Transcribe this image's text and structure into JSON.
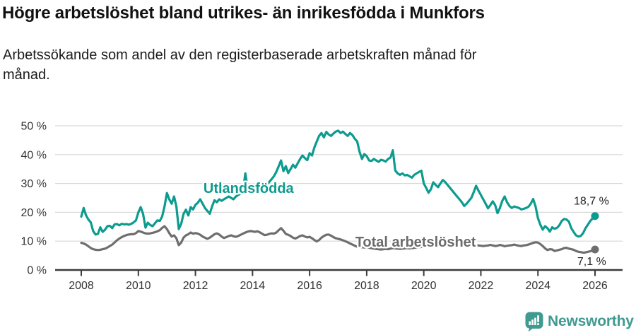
{
  "header": {
    "title": "Högre arbetslöshet bland utrikes- än inrikesfödda i Munkfors",
    "subtitle": "Arbetssökande som andel av den registerbaserade arbetskraften månad för månad."
  },
  "chart_data": {
    "type": "line",
    "x_unit": "year (monthly resolution)",
    "y_unit": "%",
    "x_start": 2008.0,
    "x_end": 2026.0,
    "x_step": 0.0833,
    "xlim": [
      2007.08,
      2026.96
    ],
    "ylim": [
      0,
      50
    ],
    "grid": "horizontal",
    "y_ticks": [
      {
        "value": 0,
        "label": "0 %"
      },
      {
        "value": 10,
        "label": "10 %"
      },
      {
        "value": 20,
        "label": "20 %"
      },
      {
        "value": 30,
        "label": "30 %"
      },
      {
        "value": 40,
        "label": "40 %"
      },
      {
        "value": 50,
        "label": "50 %"
      }
    ],
    "x_ticks": [
      {
        "value": 2008,
        "label": "2008"
      },
      {
        "value": 2010,
        "label": "2010"
      },
      {
        "value": 2012,
        "label": "2012"
      },
      {
        "value": 2014,
        "label": "2014"
      },
      {
        "value": 2016,
        "label": "2016"
      },
      {
        "value": 2018,
        "label": "2018"
      },
      {
        "value": 2020,
        "label": "2020"
      },
      {
        "value": 2022,
        "label": "2022"
      },
      {
        "value": 2024,
        "label": "2024"
      },
      {
        "value": 2026,
        "label": "2026"
      }
    ],
    "series": [
      {
        "name": "Total arbetslöshet",
        "color": "#6e6e6e",
        "end_value": 7.1,
        "values": [
          9.4,
          9.2,
          8.8,
          8.2,
          7.6,
          7.2,
          7.0,
          6.9,
          7.0,
          7.2,
          7.4,
          7.8,
          8.3,
          8.8,
          9.5,
          10.3,
          10.9,
          11.4,
          11.8,
          12.1,
          12.3,
          12.4,
          12.4,
          12.8,
          13.5,
          13.3,
          13.0,
          12.7,
          12.6,
          12.7,
          12.9,
          13.1,
          13.4,
          13.8,
          14.6,
          15.2,
          14.2,
          12.8,
          11.6,
          12.0,
          11.0,
          8.6,
          9.5,
          11.2,
          12.0,
          12.4,
          13.0,
          12.6,
          12.8,
          12.6,
          12.2,
          11.6,
          11.2,
          10.8,
          11.2,
          11.8,
          12.4,
          12.7,
          12.3,
          11.6,
          11.1,
          11.4,
          11.8,
          12.0,
          11.7,
          11.5,
          11.8,
          12.2,
          12.6,
          13.0,
          13.3,
          13.5,
          13.4,
          13.2,
          13.4,
          13.1,
          12.6,
          12.1,
          12.2,
          12.5,
          12.7,
          12.6,
          13.0,
          13.8,
          14.5,
          13.6,
          12.5,
          12.2,
          11.8,
          11.2,
          10.9,
          11.3,
          11.8,
          12.0,
          11.6,
          11.3,
          11.5,
          11.0,
          10.4,
          9.9,
          10.4,
          11.2,
          11.8,
          12.2,
          12.3,
          11.9,
          11.4,
          11.0,
          10.8,
          10.6,
          10.3,
          10.0,
          9.6,
          9.2,
          8.8,
          8.4,
          8.1,
          8.0,
          7.9,
          7.8,
          7.9,
          7.7,
          7.6,
          7.4,
          7.3,
          7.2,
          7.1,
          7.2,
          7.3,
          7.2,
          7.4,
          7.6,
          7.5,
          7.4,
          7.3,
          7.4,
          7.5,
          7.6,
          7.5,
          7.6,
          7.7,
          7.8,
          7.9,
          8.0,
          8.2,
          8.5,
          8.9,
          9.2,
          9.4,
          9.5,
          9.4,
          9.3,
          9.2,
          9.1,
          9.0,
          8.9,
          8.8,
          8.7,
          8.6,
          8.5,
          8.4,
          8.3,
          8.2,
          8.3,
          8.4,
          8.5,
          8.6,
          8.5,
          8.4,
          8.3,
          8.4,
          8.5,
          8.7,
          8.5,
          8.3,
          8.4,
          8.7,
          8.5,
          8.2,
          8.4,
          8.5,
          8.6,
          8.8,
          8.6,
          8.4,
          8.3,
          8.5,
          8.6,
          8.8,
          9.1,
          9.4,
          9.6,
          9.5,
          9.0,
          8.3,
          7.5,
          6.9,
          7.2,
          7.1,
          6.6,
          6.8,
          7.0,
          7.2,
          7.6,
          7.7,
          7.4,
          7.2,
          7.0,
          6.6,
          6.3,
          6.2,
          6.0,
          6.1,
          6.3,
          6.5,
          6.8,
          7.1
        ]
      },
      {
        "name": "Utlandsfödda",
        "color": "#0d9b8f",
        "end_value": 18.7,
        "values": [
          18.5,
          21.5,
          19.0,
          17.5,
          16.5,
          13.5,
          12.3,
          12.5,
          14.8,
          13.2,
          14.0,
          15.2,
          15.3,
          14.5,
          15.8,
          15.9,
          15.5,
          16.0,
          15.8,
          15.9,
          15.7,
          16.0,
          16.5,
          17.2,
          20.0,
          21.8,
          19.4,
          14.7,
          16.4,
          15.6,
          15.2,
          16.2,
          17.2,
          17.0,
          18.5,
          22.0,
          26.7,
          24.5,
          23.0,
          25.5,
          22.0,
          14.2,
          16.0,
          19.4,
          20.9,
          18.9,
          21.8,
          21.0,
          22.6,
          23.3,
          24.5,
          23.0,
          21.5,
          20.5,
          19.5,
          22.0,
          24.2,
          23.5,
          24.5,
          24.0,
          24.5,
          25.0,
          25.5,
          25.0,
          24.5,
          25.5,
          26.0,
          26.5,
          27.5,
          33.5,
          28.0,
          27.0,
          27.5,
          28.0,
          28.5,
          28.0,
          28.5,
          29.0,
          29.5,
          30.5,
          31.5,
          32.5,
          34.0,
          36.0,
          38.0,
          34.3,
          36.0,
          33.6,
          35.0,
          36.5,
          35.5,
          37.0,
          38.5,
          39.7,
          38.8,
          38.1,
          40.5,
          39.7,
          42.5,
          44.5,
          46.5,
          47.5,
          46.0,
          47.9,
          47.0,
          46.5,
          47.3,
          48.0,
          48.3,
          47.5,
          48.0,
          47.2,
          46.5,
          47.5,
          46.8,
          45.5,
          44.6,
          41.0,
          38.5,
          40.2,
          39.5,
          38.0,
          37.8,
          38.5,
          38.0,
          37.5,
          38.2,
          38.0,
          37.6,
          38.5,
          39.0,
          41.5,
          34.5,
          33.5,
          33.0,
          33.5,
          32.8,
          33.0,
          32.5,
          32.0,
          33.0,
          33.5,
          34.0,
          34.4,
          30.0,
          28.5,
          26.8,
          28.0,
          30.4,
          29.5,
          28.7,
          30.0,
          31.2,
          30.5,
          29.5,
          28.5,
          27.5,
          26.5,
          25.5,
          24.5,
          23.5,
          22.2,
          23.0,
          24.0,
          25.0,
          27.0,
          29.2,
          27.5,
          26.0,
          24.5,
          23.0,
          21.4,
          22.5,
          23.8,
          22.5,
          19.7,
          21.5,
          24.0,
          25.5,
          23.5,
          22.2,
          21.5,
          22.0,
          21.8,
          21.5,
          21.0,
          21.2,
          21.5,
          21.9,
          23.0,
          24.6,
          22.0,
          18.0,
          15.7,
          14.0,
          15.2,
          14.5,
          13.3,
          14.8,
          14.3,
          14.6,
          15.5,
          17.0,
          17.7,
          17.5,
          16.8,
          14.5,
          13.2,
          12.0,
          11.6,
          11.8,
          12.8,
          14.5,
          15.7,
          17.0,
          17.9,
          18.7
        ]
      }
    ],
    "annotations": [
      {
        "text": "Utlandsfödda",
        "x": 2012.28,
        "y": 28.4,
        "anchor": "start",
        "color": "#0d9b8f",
        "bold": true,
        "size": 20
      },
      {
        "text": "Total arbetslöshet",
        "x": 2017.6,
        "y": 9.8,
        "anchor": "start",
        "color": "#6b6b6b",
        "bold": true,
        "size": 20
      },
      {
        "text": "18,7 %",
        "x": 2026.49,
        "y": 24.0,
        "anchor": "end",
        "color": "#222222",
        "bold": false,
        "size": 16
      },
      {
        "text": "7,1 %",
        "x": 2026.39,
        "y": 3.1,
        "anchor": "end",
        "color": "#222222",
        "bold": false,
        "size": 16
      }
    ]
  },
  "footer": {
    "brand": "Newsworthy",
    "logo_color": "#3f9a90"
  }
}
